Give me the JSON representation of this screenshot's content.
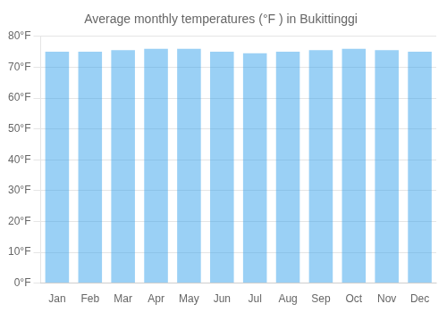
{
  "chart_data": {
    "type": "bar",
    "title": "Average monthly temperatures (°F ) in Bukittinggi",
    "categories": [
      "Jan",
      "Feb",
      "Mar",
      "Apr",
      "May",
      "Jun",
      "Jul",
      "Aug",
      "Sep",
      "Oct",
      "Nov",
      "Dec"
    ],
    "values": [
      75,
      75,
      75.5,
      76,
      76,
      75,
      74.5,
      75,
      75.5,
      76,
      75.5,
      75
    ],
    "ylim": [
      0,
      80
    ],
    "yticks": [
      {
        "value": 0,
        "label": "0°F"
      },
      {
        "value": 10,
        "label": "10°F"
      },
      {
        "value": 20,
        "label": "20°F"
      },
      {
        "value": 30,
        "label": "30°F"
      },
      {
        "value": 40,
        "label": "40°F"
      },
      {
        "value": 50,
        "label": "50°F"
      },
      {
        "value": 60,
        "label": "60°F"
      },
      {
        "value": 70,
        "label": "70°F"
      },
      {
        "value": 80,
        "label": "80°F"
      }
    ],
    "grid": true
  }
}
